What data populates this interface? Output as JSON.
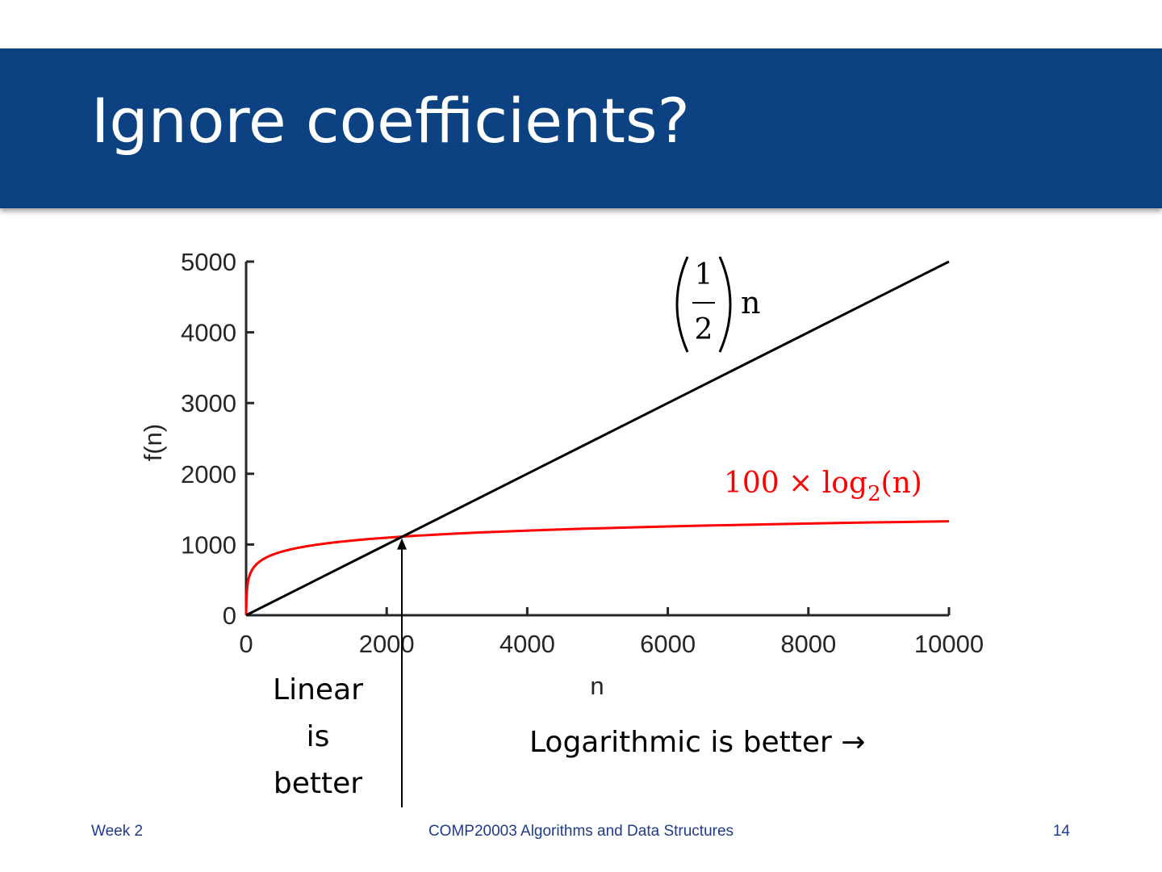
{
  "slide": {
    "title": "Ignore coefficients?",
    "footer_left": "Week 2",
    "footer_center": "COMP20003 Algorithms and Data Structures",
    "footer_right": "14"
  },
  "annotations": {
    "linear_note": [
      "Linear",
      "is",
      "better"
    ],
    "log_note": "Logarithmic is better →",
    "crossover_n": 2216
  },
  "chart_data": {
    "type": "line",
    "title": "",
    "xlabel": "n",
    "ylabel": "f(n)",
    "xlim": [
      0,
      10000
    ],
    "ylim": [
      0,
      5000
    ],
    "xticks": [
      0,
      2000,
      4000,
      6000,
      8000,
      10000
    ],
    "yticks": [
      0,
      1000,
      2000,
      3000,
      4000,
      5000
    ],
    "grid": false,
    "series": [
      {
        "name": "half_n",
        "formula": "(1/2) n",
        "label_paren_num": "1",
        "label_paren_den": "2",
        "label_var": "n",
        "color": "#000000",
        "x": [
          0,
          1000,
          2000,
          3000,
          4000,
          5000,
          6000,
          7000,
          8000,
          9000,
          10000
        ],
        "values": [
          0,
          500,
          1000,
          1500,
          2000,
          2500,
          3000,
          3500,
          4000,
          4500,
          5000
        ]
      },
      {
        "name": "hundred_log2_n",
        "formula": "100 × log2(n)",
        "label_main": "100 × log",
        "label_sub": "2",
        "label_arg": "(n)",
        "color": "#ff0000",
        "x": [
          1,
          2,
          5,
          10,
          25,
          50,
          100,
          200,
          500,
          1000,
          2000,
          3000,
          4000,
          5000,
          6000,
          7000,
          8000,
          9000,
          10000
        ],
        "values": [
          0,
          100,
          232,
          332,
          464,
          564,
          664,
          764,
          897,
          997,
          1097,
          1155,
          1197,
          1229,
          1255,
          1277,
          1297,
          1314,
          1329
        ]
      }
    ]
  }
}
